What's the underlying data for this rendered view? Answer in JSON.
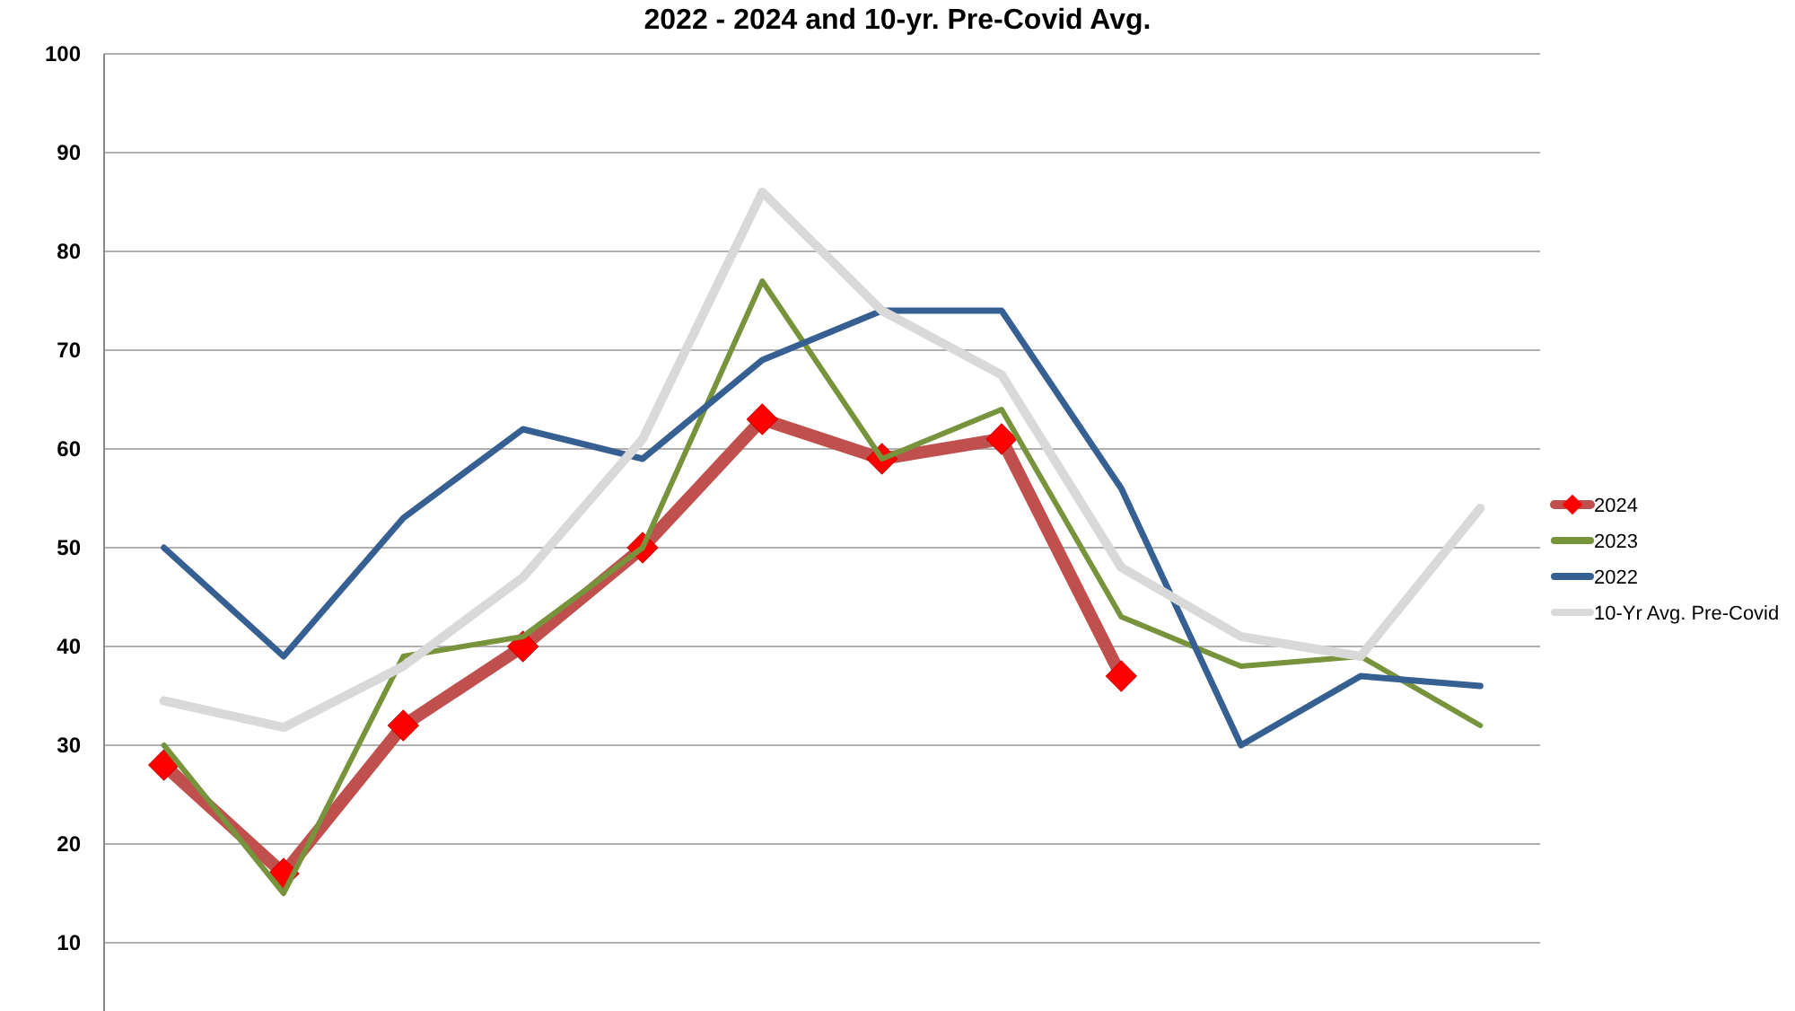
{
  "chart_data": {
    "type": "line",
    "title": "2022 - 2024 and 10-yr. Pre-Covid Avg.",
    "categories": [
      null,
      null,
      null,
      null,
      null,
      null,
      null,
      null,
      null,
      null,
      null,
      null
    ],
    "series": [
      {
        "name": "2024",
        "color": "#c0504d",
        "marker": "diamond",
        "values": [
          28,
          17,
          32,
          40,
          50,
          63,
          59,
          61,
          37,
          null,
          null,
          null
        ]
      },
      {
        "name": "2023",
        "color": "#77933c",
        "values": [
          30,
          15,
          39,
          41,
          50,
          77,
          59,
          64,
          43,
          38,
          39,
          32
        ]
      },
      {
        "name": "2022",
        "color": "#376092",
        "values": [
          50,
          39,
          53,
          62,
          59,
          69,
          74,
          74,
          56,
          30,
          37,
          36
        ]
      },
      {
        "name": "10-Yr Avg. Pre-Covid",
        "color": "#d9d9d9",
        "values": [
          34.5,
          31.8,
          38,
          47,
          61,
          86,
          74,
          67.5,
          48,
          41,
          39,
          54
        ]
      }
    ],
    "ylim": [
      3,
      100
    ],
    "yticks": [
      10,
      20,
      30,
      40,
      50,
      60,
      70,
      80,
      90,
      100
    ],
    "grid": "y",
    "legend": "right"
  }
}
